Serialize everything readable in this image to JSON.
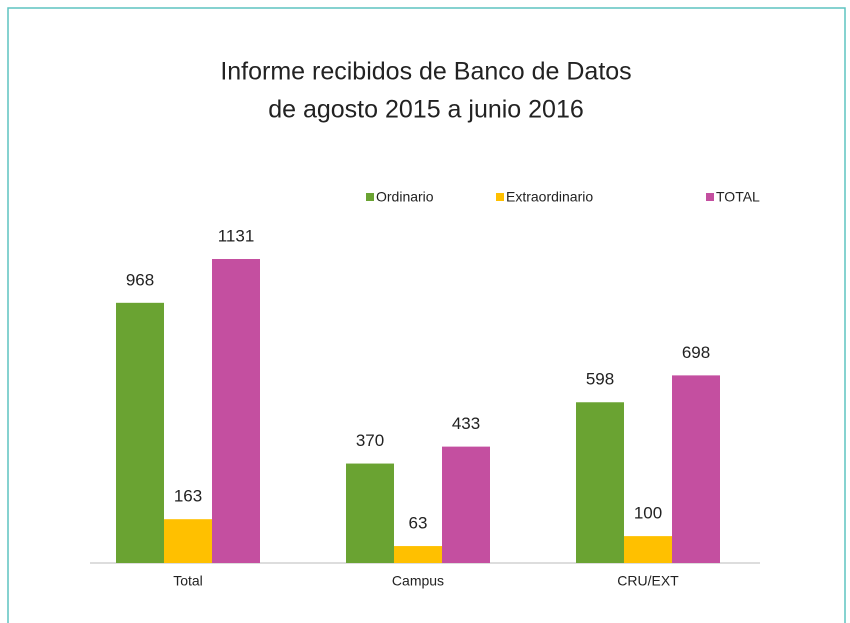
{
  "chart_data": {
    "type": "bar",
    "title": [
      "Informe recibidos de Banco de Datos",
      "de agosto 2015 a junio 2016"
    ],
    "categories": [
      "Total",
      "Campus",
      "CRU/EXT"
    ],
    "series": [
      {
        "name": "Ordinario",
        "color": "#6aa332",
        "values": [
          968,
          370,
          598
        ]
      },
      {
        "name": "Extraordinario",
        "color": "#ffc000",
        "values": [
          163,
          63,
          100
        ]
      },
      {
        "name": "TOTAL",
        "color": "#c44fa0",
        "values": [
          1131,
          433,
          698
        ]
      }
    ],
    "legend": "top"
  }
}
